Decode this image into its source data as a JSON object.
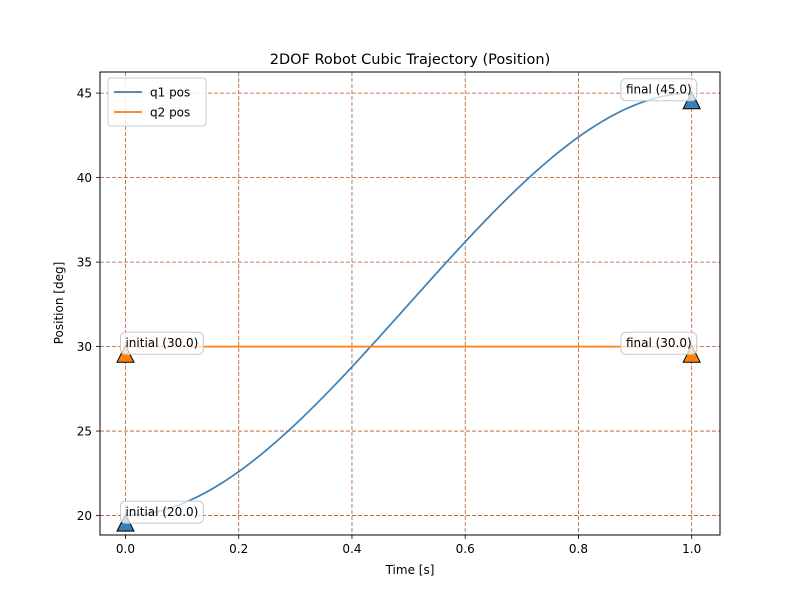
{
  "chart_data": {
    "type": "line",
    "title": "2DOF Robot Cubic Trajectory (Position)",
    "xlabel": "Time [s]",
    "ylabel": "Position [deg]",
    "xlim": [
      -0.045,
      1.05
    ],
    "ylim": [
      18.85,
      46.25
    ],
    "xticks": [
      0.0,
      0.2,
      0.4,
      0.6,
      0.8,
      1.0
    ],
    "xtick_labels": [
      "0.0",
      "0.2",
      "0.4",
      "0.6",
      "0.8",
      "1.0"
    ],
    "yticks": [
      20,
      25,
      30,
      35,
      40,
      45
    ],
    "ytick_labels": [
      "20",
      "25",
      "30",
      "35",
      "40",
      "45"
    ],
    "grid": true,
    "legend_position": "top-left",
    "series": [
      {
        "name": "q1 pos",
        "color": "#3b7fb4",
        "x": [
          0.0,
          0.1,
          0.2,
          0.3,
          0.4,
          0.5,
          0.6,
          0.7,
          0.8,
          0.9,
          1.0
        ],
        "y": [
          20.0,
          20.7,
          22.6,
          25.4,
          28.8,
          32.5,
          36.2,
          39.6,
          42.4,
          44.3,
          45.0
        ]
      },
      {
        "name": "q2 pos",
        "color": "#ff7f0e",
        "x": [
          0.0,
          1.0
        ],
        "y": [
          30.0,
          30.0
        ]
      }
    ],
    "markers": [
      {
        "x": 0.0,
        "y": 19.55,
        "color": "#3b7fb4",
        "label": "initial (20.0)",
        "anchor": "start"
      },
      {
        "x": 1.0,
        "y": 44.55,
        "color": "#3b7fb4",
        "label": "final (45.0)",
        "anchor": "end"
      },
      {
        "x": 0.0,
        "y": 29.55,
        "color": "#ff7f0e",
        "label": "initial (30.0)",
        "anchor": "start"
      },
      {
        "x": 1.0,
        "y": 29.55,
        "color": "#ff7f0e",
        "label": "final (30.0)",
        "anchor": "end"
      }
    ],
    "grid_color": "#b5582b"
  }
}
